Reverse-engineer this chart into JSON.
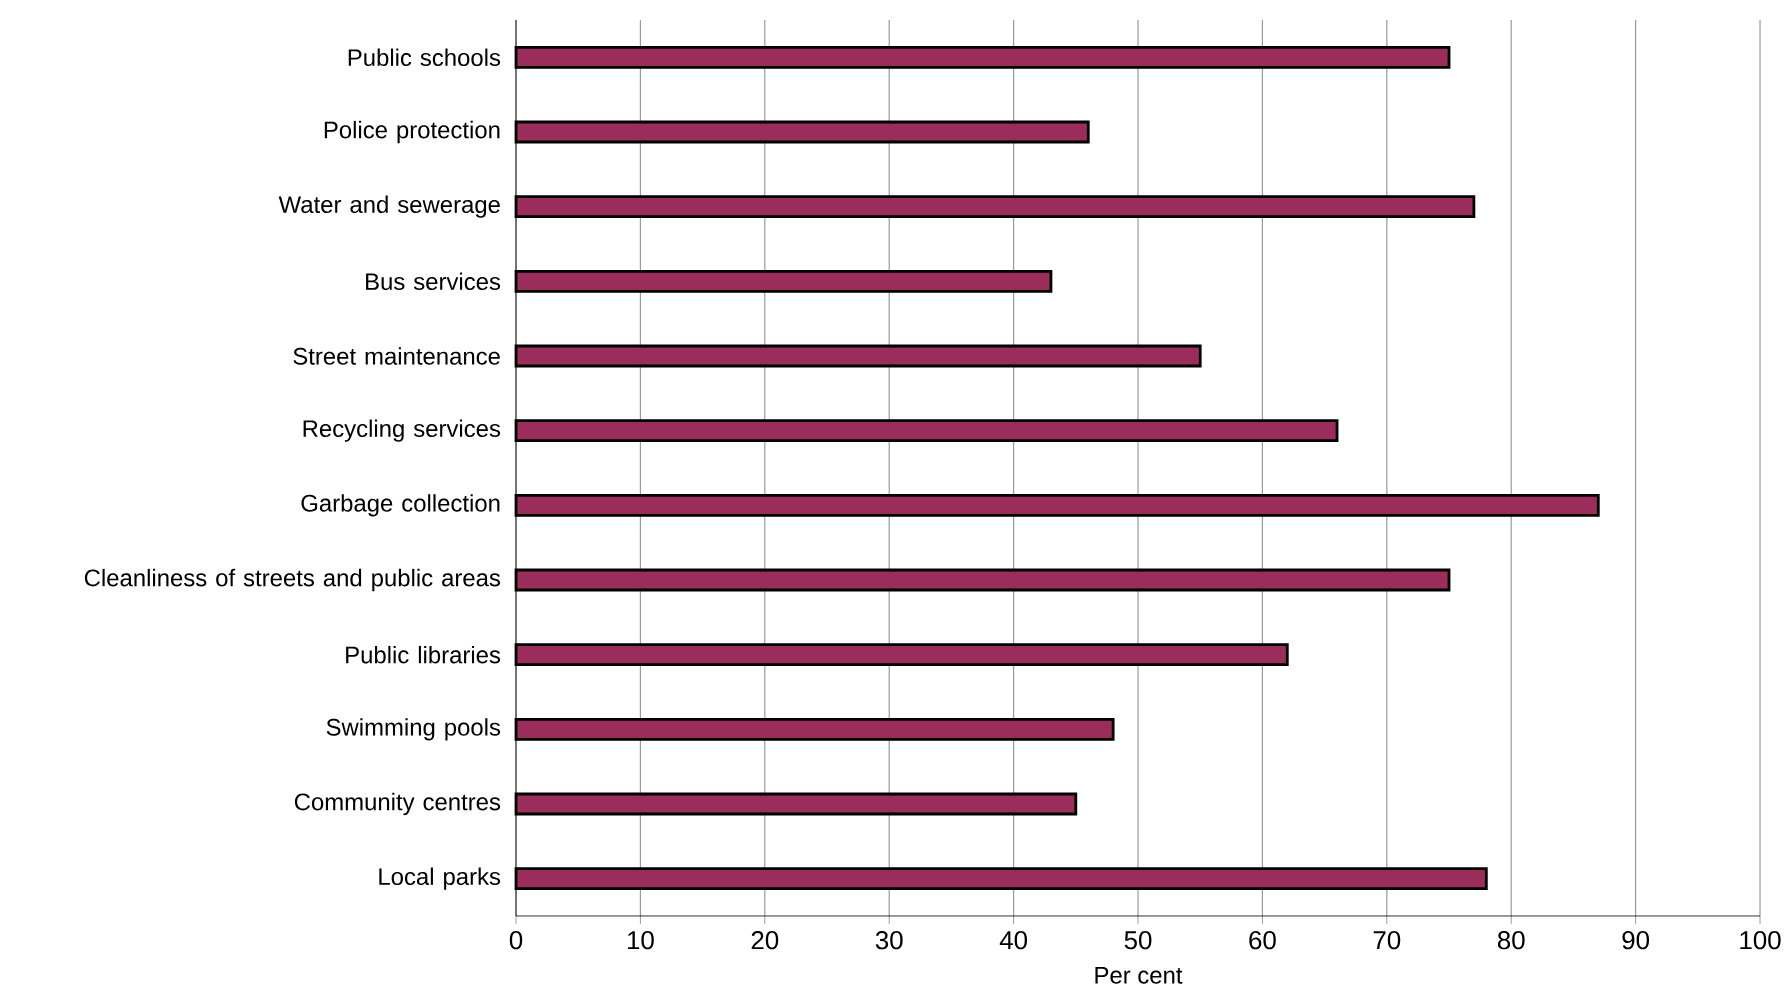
{
  "chart_data": {
    "type": "bar",
    "orientation": "horizontal",
    "xlabel": "Per cent",
    "categories": [
      "Public schools",
      "Police protection",
      "Water and sewerage",
      "Bus services",
      "Street maintenance",
      "Recycling services",
      "Garbage collection",
      "Cleanliness of streets and public areas",
      "Public libraries",
      "Swimming pools",
      "Community centres",
      "Local parks"
    ],
    "values": [
      75,
      46,
      77,
      43,
      55,
      66,
      87,
      75,
      62,
      48,
      45,
      78
    ],
    "color": "#9b2d5c",
    "xlim": [
      0,
      100
    ],
    "xticks": [
      0,
      10,
      20,
      30,
      40,
      50,
      60,
      70,
      80,
      90,
      100
    ],
    "grid": "x"
  }
}
